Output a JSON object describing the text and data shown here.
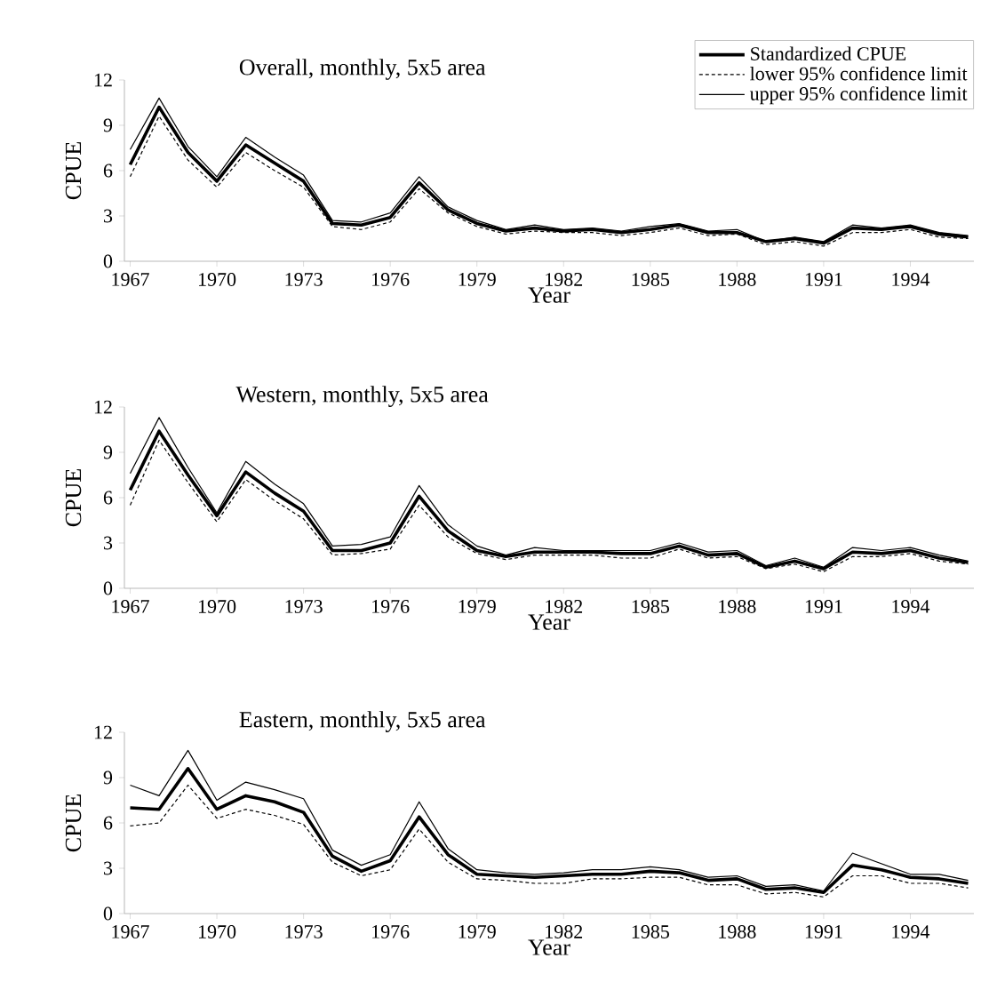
{
  "chart_data": [
    {
      "type": "line",
      "title": "Overall, monthly, 5x5 area",
      "xlabel": "Year",
      "ylabel": "CPUE",
      "x": [
        1967,
        1968,
        1969,
        1970,
        1971,
        1972,
        1973,
        1974,
        1975,
        1976,
        1977,
        1978,
        1979,
        1980,
        1981,
        1982,
        1983,
        1984,
        1985,
        1986,
        1987,
        1988,
        1989,
        1990,
        1991,
        1992,
        1993,
        1994,
        1995,
        1996
      ],
      "xlim": [
        1966.8,
        1996.2
      ],
      "xticks": [
        1967,
        1970,
        1973,
        1976,
        1979,
        1982,
        1985,
        1988,
        1991,
        1994
      ],
      "ylim": [
        0,
        12
      ],
      "yticks": [
        0,
        3,
        6,
        9,
        12
      ],
      "legend": "top right",
      "series": [
        {
          "name": "Standardized CPUE",
          "color": "#000000",
          "line_style": "solid",
          "values": [
            6.4,
            10.2,
            7.2,
            5.3,
            7.7,
            6.5,
            5.3,
            2.5,
            2.4,
            2.9,
            5.2,
            3.4,
            2.5,
            2.0,
            2.2,
            2.0,
            2.1,
            1.9,
            2.1,
            2.4,
            1.9,
            1.9,
            1.3,
            1.5,
            1.2,
            2.2,
            2.1,
            2.3,
            1.8,
            1.6
          ]
        },
        {
          "name": "lower 95% confidence limit",
          "color": "#000000",
          "line_style": "dashed",
          "values": [
            5.6,
            9.6,
            6.7,
            4.9,
            7.2,
            6.0,
            4.9,
            2.3,
            2.1,
            2.6,
            4.8,
            3.2,
            2.3,
            1.8,
            2.0,
            1.9,
            1.9,
            1.7,
            1.9,
            2.2,
            1.7,
            1.8,
            1.1,
            1.3,
            1.0,
            1.9,
            1.9,
            2.1,
            1.6,
            1.5
          ]
        },
        {
          "name": "upper 95% confidence limit",
          "color": "#000000",
          "line_style": "solid",
          "values": [
            7.4,
            10.8,
            7.6,
            5.6,
            8.2,
            6.9,
            5.7,
            2.7,
            2.6,
            3.2,
            5.6,
            3.6,
            2.7,
            2.1,
            2.4,
            2.1,
            2.2,
            2.0,
            2.3,
            2.5,
            2.0,
            2.1,
            1.3,
            1.6,
            1.3,
            2.4,
            2.2,
            2.4,
            1.9,
            1.7
          ]
        }
      ]
    },
    {
      "type": "line",
      "title": "Western, monthly, 5x5 area",
      "xlabel": "Year",
      "ylabel": "CPUE",
      "x": [
        1967,
        1968,
        1969,
        1970,
        1971,
        1972,
        1973,
        1974,
        1975,
        1976,
        1977,
        1978,
        1979,
        1980,
        1981,
        1982,
        1983,
        1984,
        1985,
        1986,
        1987,
        1988,
        1989,
        1990,
        1991,
        1992,
        1993,
        1994,
        1995,
        1996
      ],
      "xlim": [
        1966.8,
        1996.2
      ],
      "xticks": [
        1967,
        1970,
        1973,
        1976,
        1979,
        1982,
        1985,
        1988,
        1991,
        1994
      ],
      "ylim": [
        0,
        12
      ],
      "yticks": [
        0,
        3,
        6,
        9,
        12
      ],
      "series": [
        {
          "color": "#000000",
          "line_style": "solid",
          "values": [
            6.5,
            10.4,
            7.5,
            4.8,
            7.7,
            6.3,
            5.1,
            2.5,
            2.5,
            3.0,
            6.1,
            3.8,
            2.5,
            2.1,
            2.4,
            2.4,
            2.4,
            2.3,
            2.3,
            2.8,
            2.2,
            2.3,
            1.4,
            1.8,
            1.3,
            2.4,
            2.3,
            2.5,
            2.0,
            1.7
          ]
        },
        {
          "color": "#000000",
          "line_style": "dashed",
          "values": [
            5.5,
            9.8,
            7.0,
            4.4,
            7.2,
            5.8,
            4.6,
            2.2,
            2.3,
            2.6,
            5.5,
            3.4,
            2.3,
            1.9,
            2.2,
            2.2,
            2.2,
            2.0,
            2.0,
            2.6,
            2.0,
            2.1,
            1.3,
            1.6,
            1.1,
            2.1,
            2.1,
            2.3,
            1.8,
            1.6
          ]
        },
        {
          "color": "#000000",
          "line_style": "solid",
          "values": [
            7.6,
            11.3,
            8.0,
            5.0,
            8.4,
            6.9,
            5.6,
            2.8,
            2.9,
            3.4,
            6.8,
            4.2,
            2.8,
            2.2,
            2.7,
            2.5,
            2.5,
            2.5,
            2.5,
            3.0,
            2.4,
            2.5,
            1.5,
            2.0,
            1.4,
            2.7,
            2.5,
            2.7,
            2.2,
            1.8
          ]
        }
      ]
    },
    {
      "type": "line",
      "title": "Eastern, monthly, 5x5 area",
      "xlabel": "Year",
      "ylabel": "CPUE",
      "x": [
        1967,
        1968,
        1969,
        1970,
        1971,
        1972,
        1973,
        1974,
        1975,
        1976,
        1977,
        1978,
        1979,
        1980,
        1981,
        1982,
        1983,
        1984,
        1985,
        1986,
        1987,
        1988,
        1989,
        1990,
        1991,
        1992,
        1993,
        1994,
        1995,
        1996
      ],
      "xlim": [
        1966.8,
        1996.2
      ],
      "xticks": [
        1967,
        1970,
        1973,
        1976,
        1979,
        1982,
        1985,
        1988,
        1991,
        1994
      ],
      "ylim": [
        0,
        12
      ],
      "yticks": [
        0,
        3,
        6,
        9,
        12
      ],
      "series": [
        {
          "color": "#000000",
          "line_style": "solid",
          "values": [
            7.0,
            6.9,
            9.6,
            6.9,
            7.8,
            7.4,
            6.7,
            3.8,
            2.8,
            3.5,
            6.4,
            3.9,
            2.6,
            2.5,
            2.4,
            2.5,
            2.6,
            2.6,
            2.8,
            2.7,
            2.2,
            2.3,
            1.6,
            1.7,
            1.4,
            3.2,
            2.9,
            2.4,
            2.3,
            2.0
          ]
        },
        {
          "color": "#000000",
          "line_style": "dashed",
          "values": [
            5.8,
            6.0,
            8.5,
            6.3,
            6.9,
            6.5,
            5.9,
            3.4,
            2.5,
            2.9,
            5.6,
            3.4,
            2.3,
            2.2,
            2.0,
            2.0,
            2.3,
            2.3,
            2.4,
            2.4,
            1.9,
            1.9,
            1.3,
            1.4,
            1.1,
            2.5,
            2.5,
            2.0,
            2.0,
            1.7
          ]
        },
        {
          "color": "#000000",
          "line_style": "solid",
          "values": [
            8.5,
            7.8,
            10.8,
            7.5,
            8.7,
            8.2,
            7.6,
            4.2,
            3.2,
            3.9,
            7.4,
            4.3,
            2.9,
            2.7,
            2.6,
            2.7,
            2.9,
            2.9,
            3.1,
            2.9,
            2.4,
            2.5,
            1.8,
            1.9,
            1.5,
            4.0,
            3.3,
            2.6,
            2.6,
            2.2
          ]
        }
      ]
    }
  ]
}
